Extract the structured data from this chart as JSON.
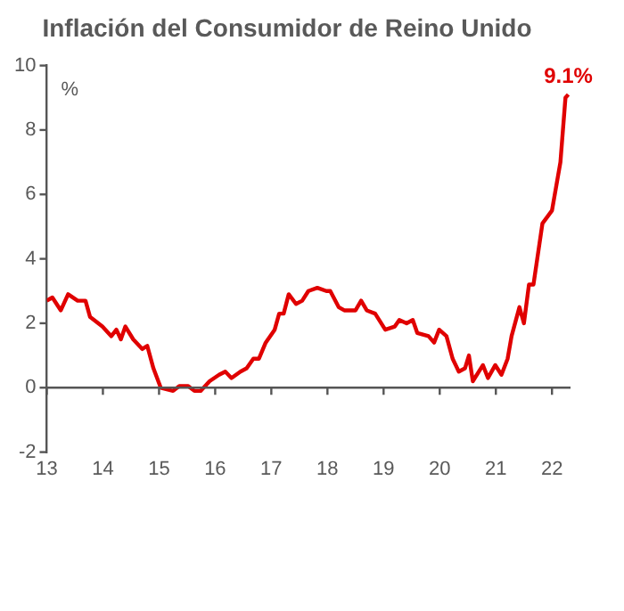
{
  "chart_data": {
    "type": "line",
    "title": "Inflación del Consumidor de Reino Unido",
    "ylabel": "%",
    "xlim": [
      13,
      22.33
    ],
    "xticks": [
      13,
      14,
      15,
      16,
      17,
      18,
      19,
      20,
      21,
      22
    ],
    "ylim": [
      -2,
      10
    ],
    "yticks": [
      -2,
      0,
      2,
      4,
      6,
      8,
      10
    ],
    "legend": false,
    "marker": "none",
    "line_style": "solid",
    "annotations": [
      {
        "text": "9.1%",
        "x": 22.29,
        "y": 9.1
      }
    ],
    "series": [
      {
        "color": "#e00000",
        "x": [
          13.0,
          13.1,
          13.25,
          13.38,
          13.55,
          13.69,
          13.77,
          13.99,
          14.15,
          14.24,
          14.32,
          14.4,
          14.54,
          14.7,
          14.79,
          14.9,
          15.03,
          15.25,
          15.36,
          15.52,
          15.63,
          15.74,
          15.9,
          16.07,
          16.18,
          16.29,
          16.45,
          16.56,
          16.68,
          16.78,
          16.9,
          17.06,
          17.14,
          17.22,
          17.31,
          17.44,
          17.55,
          17.66,
          17.82,
          17.98,
          18.05,
          18.2,
          18.3,
          18.5,
          18.6,
          18.7,
          18.85,
          19.03,
          19.2,
          19.28,
          19.41,
          19.52,
          19.6,
          19.8,
          19.9,
          19.99,
          20.12,
          20.23,
          20.34,
          20.45,
          20.52,
          20.59,
          20.77,
          20.86,
          20.99,
          21.1,
          21.21,
          21.28,
          21.42,
          21.5,
          21.59,
          21.67,
          21.83,
          22.0,
          22.15,
          22.24,
          22.29
        ],
        "values": [
          2.7,
          2.8,
          2.4,
          2.9,
          2.7,
          2.7,
          2.2,
          1.9,
          1.6,
          1.8,
          1.5,
          1.9,
          1.5,
          1.2,
          1.3,
          0.6,
          0.0,
          -0.1,
          0.05,
          0.05,
          -0.1,
          -0.1,
          0.2,
          0.4,
          0.5,
          0.3,
          0.5,
          0.6,
          0.9,
          0.9,
          1.4,
          1.8,
          2.3,
          2.3,
          2.9,
          2.6,
          2.7,
          3.0,
          3.1,
          3.0,
          3.0,
          2.5,
          2.4,
          2.4,
          2.7,
          2.4,
          2.3,
          1.8,
          1.9,
          2.1,
          2.0,
          2.1,
          1.7,
          1.6,
          1.4,
          1.8,
          1.6,
          0.9,
          0.5,
          0.6,
          1.0,
          0.2,
          0.7,
          0.3,
          0.7,
          0.4,
          0.9,
          1.6,
          2.5,
          2.0,
          3.2,
          3.2,
          5.1,
          5.5,
          7.0,
          9.0,
          9.1
        ]
      }
    ]
  }
}
